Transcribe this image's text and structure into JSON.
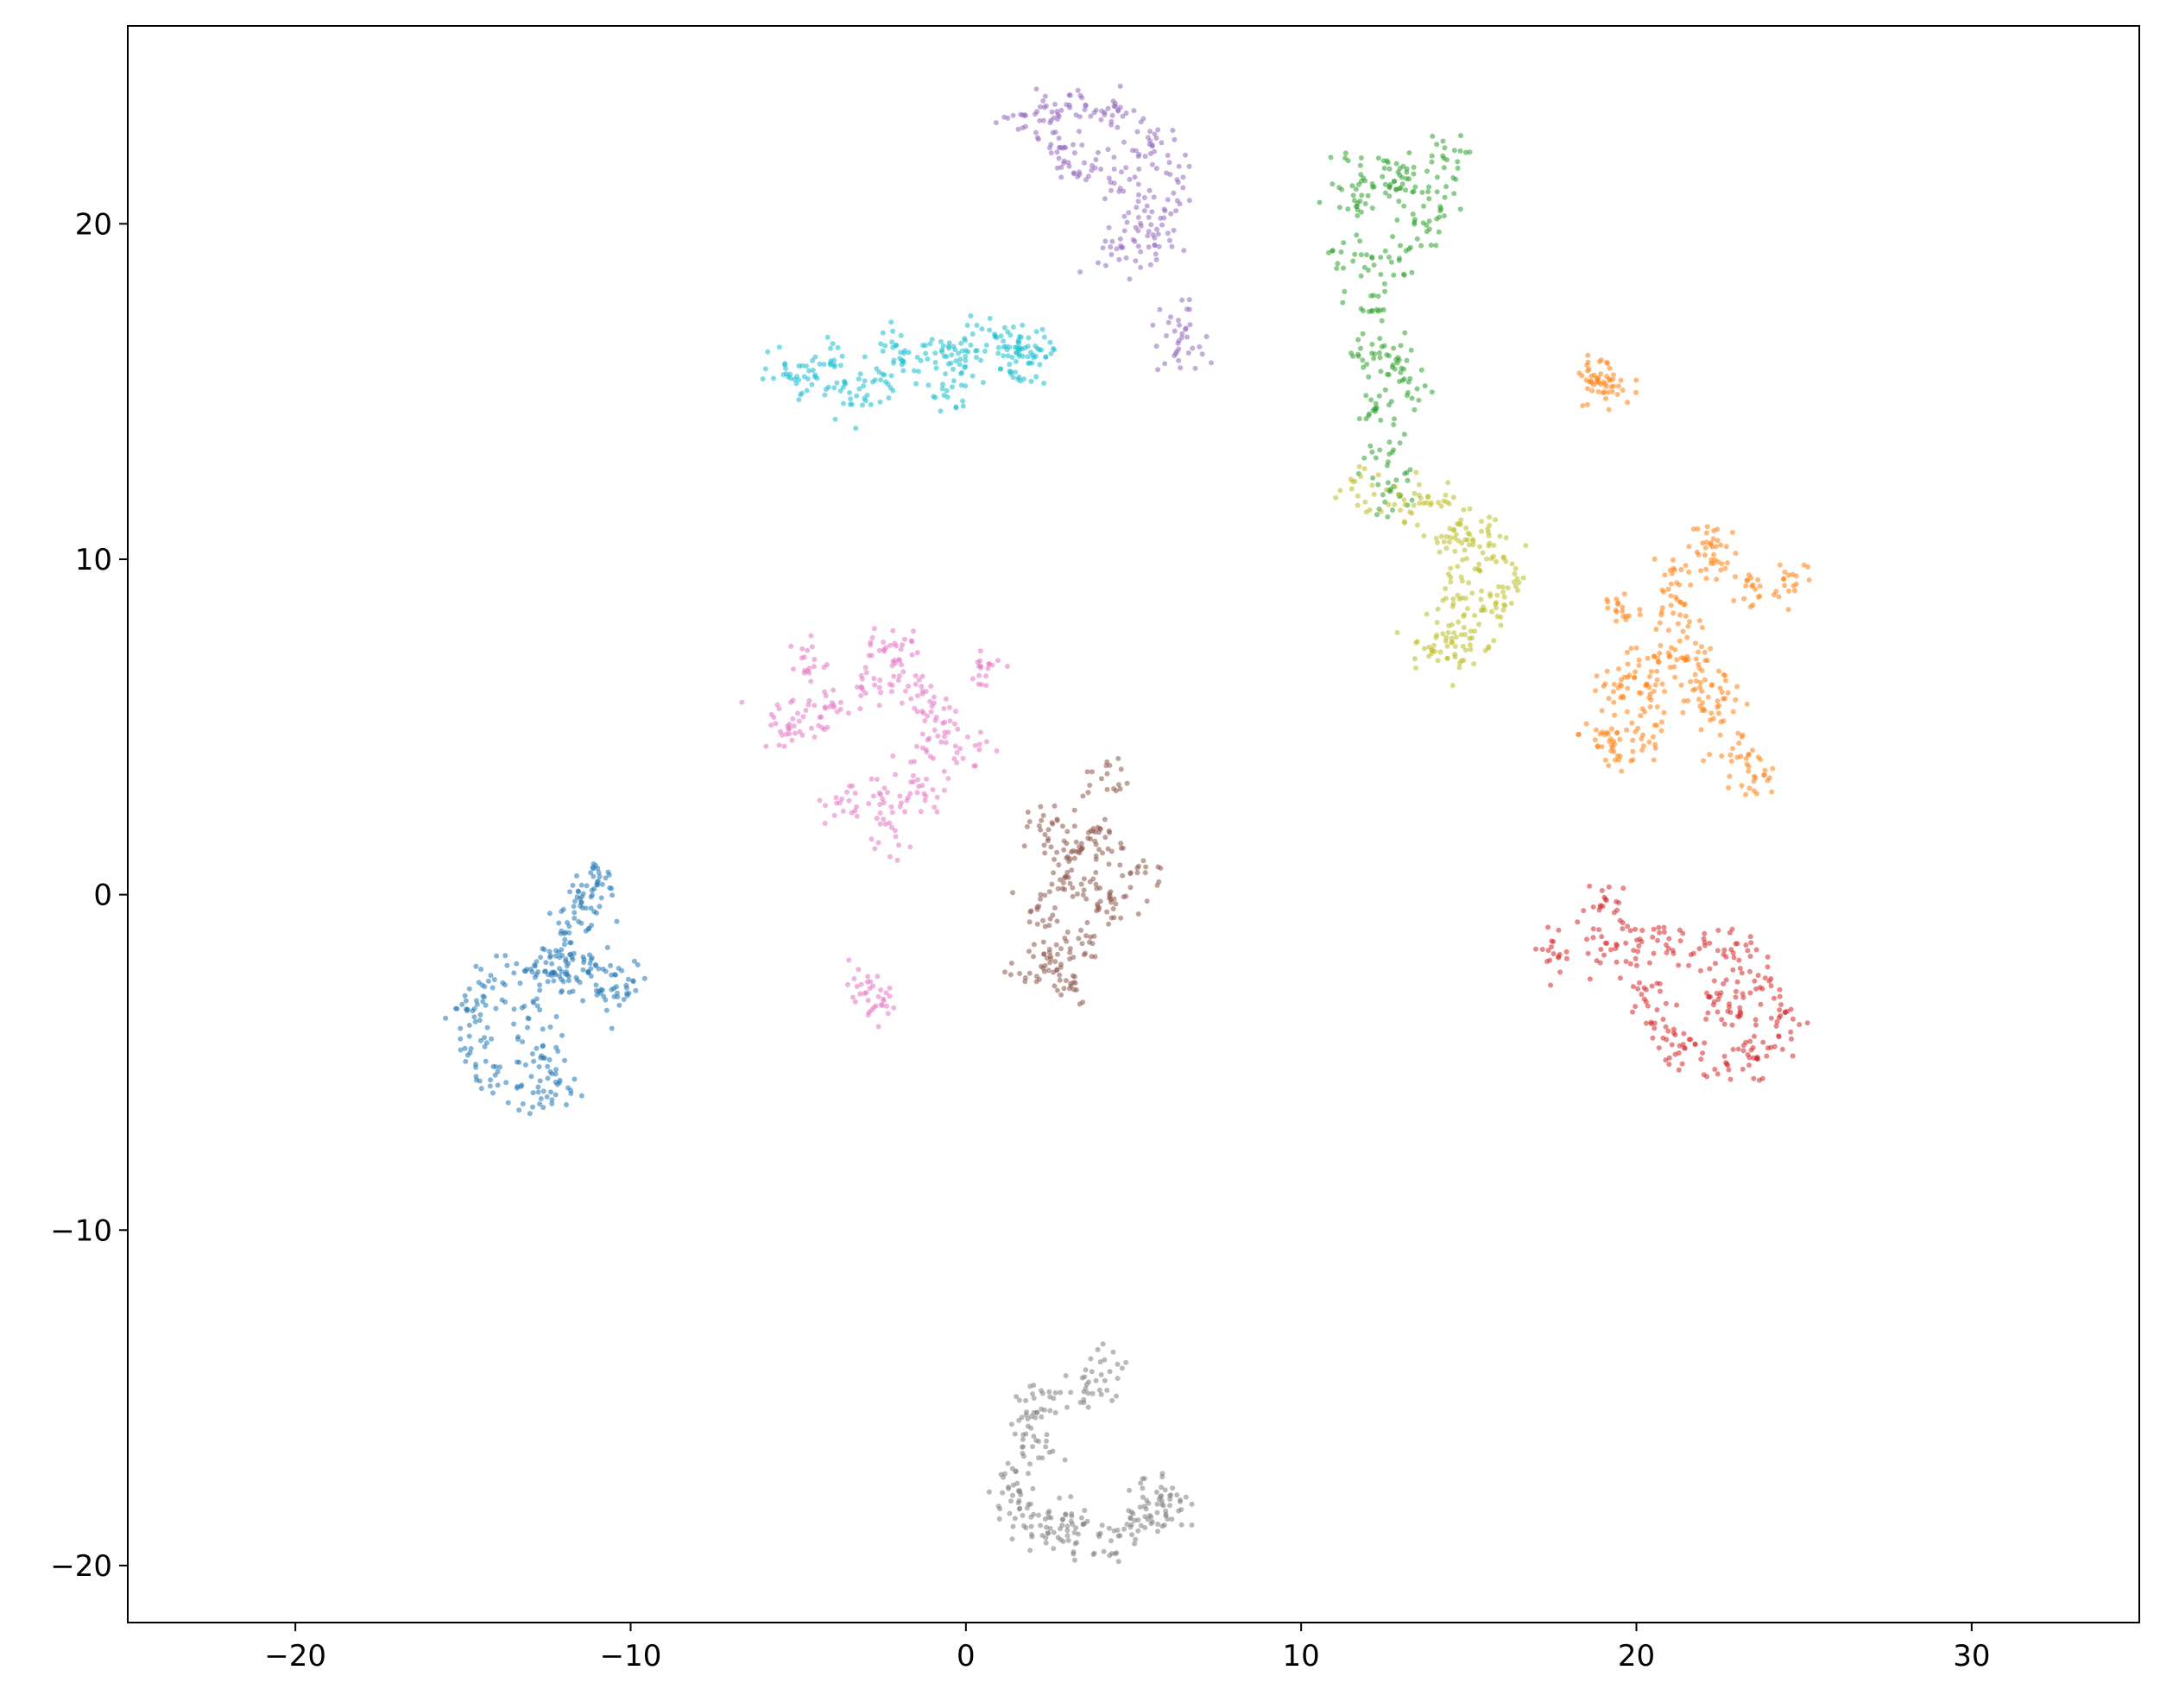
{
  "chart_data": {
    "type": "scatter",
    "title": "",
    "xlabel": "",
    "ylabel": "",
    "xlim": [
      -25,
      35
    ],
    "ylim": [
      -21.7,
      25.9
    ],
    "x_ticks": [
      -20,
      -10,
      0,
      10,
      20,
      30
    ],
    "y_ticks": [
      -20,
      -10,
      0,
      10,
      20
    ],
    "x_tick_labels": [
      "−20",
      "−10",
      "0",
      "10",
      "20",
      "30"
    ],
    "y_tick_labels": [
      "−20",
      "−10",
      "0",
      "10",
      "20"
    ],
    "grid": false,
    "legend": "none",
    "clusters": [
      {
        "color": "#1f77b4",
        "center": [
          -13.2,
          -4.3
        ],
        "points": [
          [
            -14.8,
            -3.5
          ],
          [
            -14.5,
            -4.5
          ],
          [
            -13.9,
            -5.5
          ],
          [
            -13.0,
            -6.0
          ],
          [
            -12.2,
            -5.8
          ],
          [
            -14.2,
            -2.9
          ],
          [
            -13.2,
            -2.2
          ],
          [
            -12.5,
            -2.0
          ],
          [
            -11.8,
            -2.0
          ],
          [
            -11.2,
            -2.1
          ],
          [
            -13.0,
            -3.5
          ],
          [
            -12.6,
            -4.8
          ],
          [
            -12.0,
            -2.6
          ],
          [
            -10.5,
            -2.7
          ],
          [
            -10.2,
            -2.8
          ],
          [
            -11.8,
            -1.0
          ],
          [
            -11.5,
            -0.4
          ],
          [
            -11.2,
            0.1
          ],
          [
            -11.0,
            0.3
          ]
        ]
      },
      {
        "color": "#ff7f0e",
        "center": [
          21.0,
          6.5
        ],
        "points": [
          [
            19.0,
            4.8
          ],
          [
            19.5,
            4.2
          ],
          [
            20.2,
            4.6
          ],
          [
            19.3,
            6.0
          ],
          [
            20.0,
            6.6
          ],
          [
            20.5,
            5.8
          ],
          [
            21.0,
            7.0
          ],
          [
            21.5,
            7.5
          ],
          [
            22.0,
            6.5
          ],
          [
            22.5,
            6.0
          ],
          [
            22.2,
            5.4
          ],
          [
            21.0,
            8.5
          ],
          [
            21.1,
            9.5
          ],
          [
            22.2,
            9.8
          ],
          [
            22.3,
            10.5
          ],
          [
            19.5,
            8.5
          ],
          [
            23.5,
            9.1
          ],
          [
            24.6,
            9.5
          ],
          [
            23.2,
            4.1
          ],
          [
            23.5,
            3.4
          ]
        ]
      },
      {
        "color": "#2ca02c",
        "center": [
          13.0,
          18.0
        ],
        "points": [
          [
            11.8,
            21.6
          ],
          [
            12.5,
            21.5
          ],
          [
            13.0,
            21.3
          ],
          [
            14.2,
            22.0
          ],
          [
            13.5,
            20.0
          ],
          [
            12.8,
            19.0
          ],
          [
            11.5,
            19.0
          ],
          [
            12.0,
            17.5
          ],
          [
            12.8,
            16.0
          ],
          [
            13.3,
            15.0
          ],
          [
            12.0,
            16.0
          ],
          [
            12.3,
            14.5
          ],
          [
            12.5,
            13.0
          ],
          [
            12.8,
            12.0
          ],
          [
            14.0,
            20.8
          ],
          [
            11.6,
            20.5
          ]
        ]
      },
      {
        "color": "#d62728",
        "center": [
          22.5,
          -3.0
        ],
        "points": [
          [
            17.6,
            -1.6
          ],
          [
            18.8,
            -1.6
          ],
          [
            19.2,
            -0.3
          ],
          [
            20.0,
            -1.5
          ],
          [
            21.0,
            -1.5
          ],
          [
            22.0,
            -1.5
          ],
          [
            23.0,
            -1.8
          ],
          [
            24.0,
            -2.7
          ],
          [
            24.4,
            -3.8
          ],
          [
            23.7,
            -4.7
          ],
          [
            22.8,
            -5.0
          ],
          [
            21.5,
            -4.8
          ],
          [
            20.8,
            -4.2
          ],
          [
            20.3,
            -3.0
          ],
          [
            22.5,
            -3.0
          ],
          [
            23.0,
            -3.5
          ]
        ]
      },
      {
        "color": "#9467bd",
        "center": [
          4.0,
          22.0
        ],
        "points": [
          [
            1.8,
            23.0
          ],
          [
            2.5,
            23.2
          ],
          [
            3.5,
            23.5
          ],
          [
            4.5,
            23.2
          ],
          [
            5.5,
            22.5
          ],
          [
            6.0,
            21.5
          ],
          [
            5.9,
            20.4
          ],
          [
            5.2,
            20.3
          ],
          [
            4.5,
            21.5
          ],
          [
            3.5,
            21.8
          ],
          [
            2.8,
            22.2
          ],
          [
            4.3,
            19.1
          ],
          [
            5.5,
            19.3
          ],
          [
            6.2,
            17.0
          ],
          [
            6.4,
            16.0
          ]
        ]
      },
      {
        "color": "#8c564b",
        "center": [
          3.0,
          -1.0
        ],
        "points": [
          [
            2.0,
            -2.2
          ],
          [
            2.3,
            -0.5
          ],
          [
            2.8,
            0.5
          ],
          [
            3.2,
            1.3
          ],
          [
            3.5,
            2.0
          ],
          [
            4.2,
            3.4
          ],
          [
            4.0,
            1.5
          ],
          [
            3.8,
            0.0
          ],
          [
            3.4,
            -1.5
          ],
          [
            3.0,
            -2.6
          ],
          [
            2.5,
            -2.0
          ],
          [
            5.3,
            0.7
          ],
          [
            4.4,
            -0.5
          ],
          [
            2.4,
            2.0
          ]
        ]
      },
      {
        "color": "#e377c2",
        "center": [
          -2.5,
          5.5
        ],
        "points": [
          [
            -5.5,
            5.0
          ],
          [
            -4.0,
            5.5
          ],
          [
            -2.8,
            6.3
          ],
          [
            -2.4,
            7.5
          ],
          [
            -2.0,
            7.0
          ],
          [
            -1.5,
            6.0
          ],
          [
            -0.8,
            5.3
          ],
          [
            0.5,
            6.8
          ],
          [
            0.0,
            4.3
          ],
          [
            -1.2,
            4.6
          ],
          [
            -2.4,
            1.8
          ],
          [
            -2.2,
            3.0
          ],
          [
            -1.3,
            3.0
          ],
          [
            -3.5,
            2.7
          ],
          [
            -4.8,
            7.0
          ],
          [
            -5.0,
            5.2
          ],
          [
            -3.0,
            -2.8
          ],
          [
            -2.8,
            -3.2
          ]
        ]
      },
      {
        "color": "#7f7f7f",
        "center": [
          4.0,
          -17.5
        ],
        "points": [
          [
            4.3,
            -14.2
          ],
          [
            3.5,
            -14.8
          ],
          [
            2.2,
            -15.0
          ],
          [
            1.8,
            -15.7
          ],
          [
            1.8,
            -16.5
          ],
          [
            1.4,
            -17.5
          ],
          [
            1.5,
            -18.4
          ],
          [
            2.2,
            -18.8
          ],
          [
            3.0,
            -19.2
          ],
          [
            4.0,
            -19.3
          ],
          [
            5.0,
            -19.0
          ],
          [
            5.6,
            -18.5
          ],
          [
            5.9,
            -18.2
          ],
          [
            5.8,
            -17.8
          ],
          [
            3.0,
            -18.5
          ]
        ]
      },
      {
        "color": "#bcbd22",
        "center": [
          15.0,
          9.5
        ],
        "points": [
          [
            11.8,
            12.0
          ],
          [
            13.2,
            11.8
          ],
          [
            14.0,
            11.7
          ],
          [
            15.0,
            11.0
          ],
          [
            15.8,
            10.5
          ],
          [
            16.2,
            9.5
          ],
          [
            15.8,
            8.5
          ],
          [
            15.0,
            7.6
          ],
          [
            14.3,
            7.3
          ],
          [
            13.9,
            7.5
          ],
          [
            14.5,
            8.5
          ],
          [
            14.8,
            9.5
          ],
          [
            14.5,
            10.5
          ]
        ]
      },
      {
        "color": "#17becf",
        "center": [
          -1.5,
          15.7
        ],
        "points": [
          [
            -5.4,
            15.7
          ],
          [
            -4.5,
            15.2
          ],
          [
            -3.5,
            15.0
          ],
          [
            -2.5,
            15.3
          ],
          [
            -1.5,
            15.7
          ],
          [
            -0.5,
            16.2
          ],
          [
            0.5,
            16.6
          ],
          [
            1.5,
            16.5
          ],
          [
            2.2,
            16.2
          ],
          [
            2.0,
            15.9
          ],
          [
            -4.0,
            15.7
          ],
          [
            -2.0,
            16.2
          ],
          [
            0.0,
            15.7
          ],
          [
            -0.5,
            14.9
          ],
          [
            1.3,
            16.0
          ]
        ]
      },
      {
        "color": "#ff7f0e",
        "center": [
          19.0,
          15.3
        ],
        "points": [
          [
            18.8,
            15.5
          ],
          [
            19.2,
            15.2
          ],
          [
            18.9,
            15.1
          ]
        ]
      }
    ]
  }
}
